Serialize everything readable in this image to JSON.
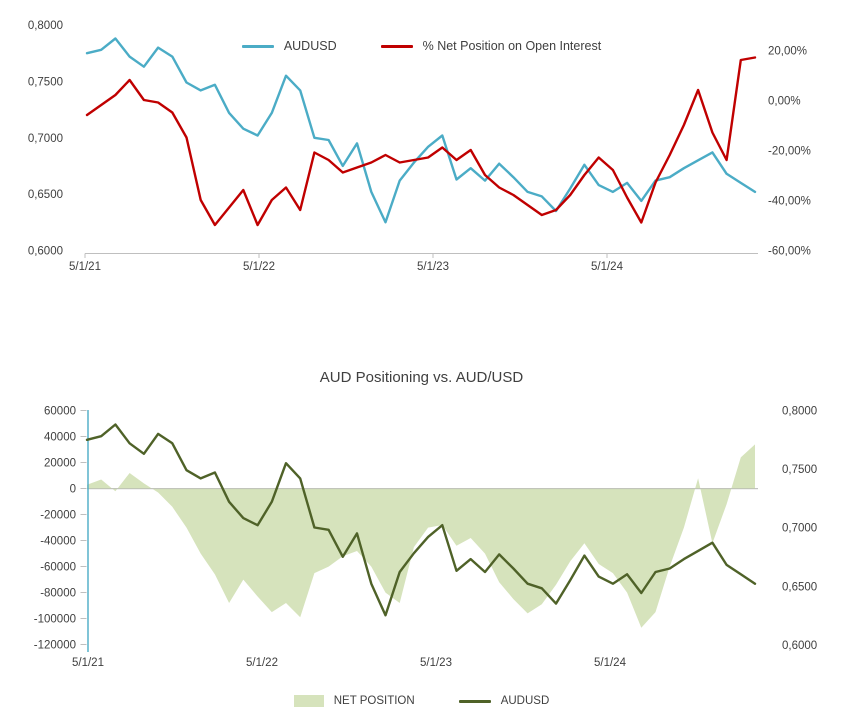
{
  "colors": {
    "audusd_blue": "#4BACC6",
    "net_pct_red": "#C00000",
    "net_position_green": "#D6E3BC",
    "audusd_olive": "#4F6228",
    "axis_line": "#BFBFBF",
    "gridline": "#D9D9D9",
    "text": "#3F3F3F"
  },
  "chart_data": [
    {
      "id": "fx-vs-net-pct",
      "type": "line",
      "title": "",
      "legend_position": "top-center",
      "x_tick_labels": [
        "5/1/21",
        "5/1/22",
        "5/1/23",
        "5/1/24"
      ],
      "x_monthly": [
        "2021-01",
        "2021-02",
        "2021-03",
        "2021-04",
        "2021-05",
        "2021-06",
        "2021-07",
        "2021-08",
        "2021-09",
        "2021-10",
        "2021-11",
        "2021-12",
        "2022-01",
        "2022-02",
        "2022-03",
        "2022-04",
        "2022-05",
        "2022-06",
        "2022-07",
        "2022-08",
        "2022-09",
        "2022-10",
        "2022-11",
        "2022-12",
        "2023-01",
        "2023-02",
        "2023-03",
        "2023-04",
        "2023-05",
        "2023-06",
        "2023-07",
        "2023-08",
        "2023-09",
        "2023-10",
        "2023-11",
        "2023-12",
        "2024-01",
        "2024-02",
        "2024-03",
        "2024-04",
        "2024-05",
        "2024-06",
        "2024-07",
        "2024-08",
        "2024-09",
        "2024-10",
        "2024-11",
        "2024-12"
      ],
      "left_axis": {
        "ticks": [
          "0,8000",
          "0,7500",
          "0,7000",
          "0,6500",
          "0,6000"
        ],
        "max": 0.8,
        "min": 0.6
      },
      "right_axis": {
        "ticks": [
          "20,00%",
          "0,00%",
          "-20,00%",
          "-40,00%",
          "-60,00%"
        ],
        "max": 20,
        "min": -60
      },
      "series": [
        {
          "name": "AUDUSD",
          "axis": "left",
          "color": "#4BACC6",
          "values": [
            0.775,
            0.778,
            0.788,
            0.772,
            0.763,
            0.78,
            0.772,
            0.749,
            0.742,
            0.747,
            0.722,
            0.708,
            0.702,
            0.722,
            0.755,
            0.742,
            0.7,
            0.698,
            0.675,
            0.695,
            0.652,
            0.625,
            0.662,
            0.678,
            0.692,
            0.702,
            0.663,
            0.673,
            0.662,
            0.677,
            0.665,
            0.652,
            0.648,
            0.635,
            0.655,
            0.676,
            0.658,
            0.652,
            0.66,
            0.644,
            0.662,
            0.665,
            0.673,
            0.68,
            0.687,
            0.668,
            0.66,
            0.652
          ]
        },
        {
          "name": "% Net Position on Open Interest",
          "axis": "right",
          "color": "#C00000",
          "values": [
            -6,
            -2,
            2,
            8,
            0,
            -1,
            -5,
            -15,
            -40,
            -50,
            -43,
            -36,
            -50,
            -40,
            -35,
            -44,
            -21,
            -24,
            -29,
            -27,
            -25,
            -22,
            -25,
            -24,
            -23,
            -19,
            -24,
            -20,
            -30,
            -35,
            -38,
            -42,
            -46,
            -44,
            -38,
            -30,
            -23,
            -28,
            -39,
            -49,
            -33,
            -22,
            -10,
            4,
            -13,
            -24,
            16,
            17
          ]
        }
      ]
    },
    {
      "id": "positioning-vs-fx",
      "type": "area+line",
      "title": "AUD Positioning vs. AUD/USD",
      "legend_position": "bottom-center",
      "x_tick_labels": [
        "5/1/21",
        "5/1/22",
        "5/1/23",
        "5/1/24"
      ],
      "x_monthly": [
        "2021-01",
        "2021-02",
        "2021-03",
        "2021-04",
        "2021-05",
        "2021-06",
        "2021-07",
        "2021-08",
        "2021-09",
        "2021-10",
        "2021-11",
        "2021-12",
        "2022-01",
        "2022-02",
        "2022-03",
        "2022-04",
        "2022-05",
        "2022-06",
        "2022-07",
        "2022-08",
        "2022-09",
        "2022-10",
        "2022-11",
        "2022-12",
        "2023-01",
        "2023-02",
        "2023-03",
        "2023-04",
        "2023-05",
        "2023-06",
        "2023-07",
        "2023-08",
        "2023-09",
        "2023-10",
        "2023-11",
        "2023-12",
        "2024-01",
        "2024-02",
        "2024-03",
        "2024-04",
        "2024-05",
        "2024-06",
        "2024-07",
        "2024-08",
        "2024-09",
        "2024-10",
        "2024-11",
        "2024-12"
      ],
      "left_axis": {
        "ticks": [
          "60000",
          "40000",
          "20000",
          "0",
          "-20000",
          "-40000",
          "-60000",
          "-80000",
          "-100000",
          "-120000"
        ],
        "max": 60000,
        "min": -120000
      },
      "right_axis": {
        "ticks": [
          "0,8000",
          "0,7500",
          "0,7000",
          "0,6500",
          "0,6000"
        ],
        "max": 0.8,
        "min": 0.6
      },
      "series": [
        {
          "name": "NET POSITION",
          "type": "area",
          "axis": "left",
          "color": "#D6E3BC",
          "values": [
            3000,
            7000,
            -2000,
            12000,
            4000,
            -3000,
            -14000,
            -30000,
            -50000,
            -66000,
            -88000,
            -70000,
            -83000,
            -95000,
            -88000,
            -99000,
            -65000,
            -60000,
            -52000,
            -48000,
            -60000,
            -80000,
            -88000,
            -45000,
            -30000,
            -28000,
            -44000,
            -38000,
            -50000,
            -72000,
            -85000,
            -96000,
            -89000,
            -74000,
            -56000,
            -42000,
            -58000,
            -65000,
            -80000,
            -107000,
            -95000,
            -60000,
            -30000,
            8000,
            -42000,
            -12000,
            24000,
            34000
          ]
        },
        {
          "name": "AUDUSD",
          "type": "line",
          "axis": "right",
          "color": "#4F6228",
          "values": [
            0.775,
            0.778,
            0.788,
            0.772,
            0.763,
            0.78,
            0.772,
            0.749,
            0.742,
            0.747,
            0.722,
            0.708,
            0.702,
            0.722,
            0.755,
            0.742,
            0.7,
            0.698,
            0.675,
            0.695,
            0.652,
            0.625,
            0.662,
            0.678,
            0.692,
            0.702,
            0.663,
            0.673,
            0.662,
            0.677,
            0.665,
            0.652,
            0.648,
            0.635,
            0.655,
            0.676,
            0.658,
            0.652,
            0.66,
            0.644,
            0.662,
            0.665,
            0.673,
            0.68,
            0.687,
            0.668,
            0.66,
            0.652
          ]
        }
      ]
    }
  ]
}
